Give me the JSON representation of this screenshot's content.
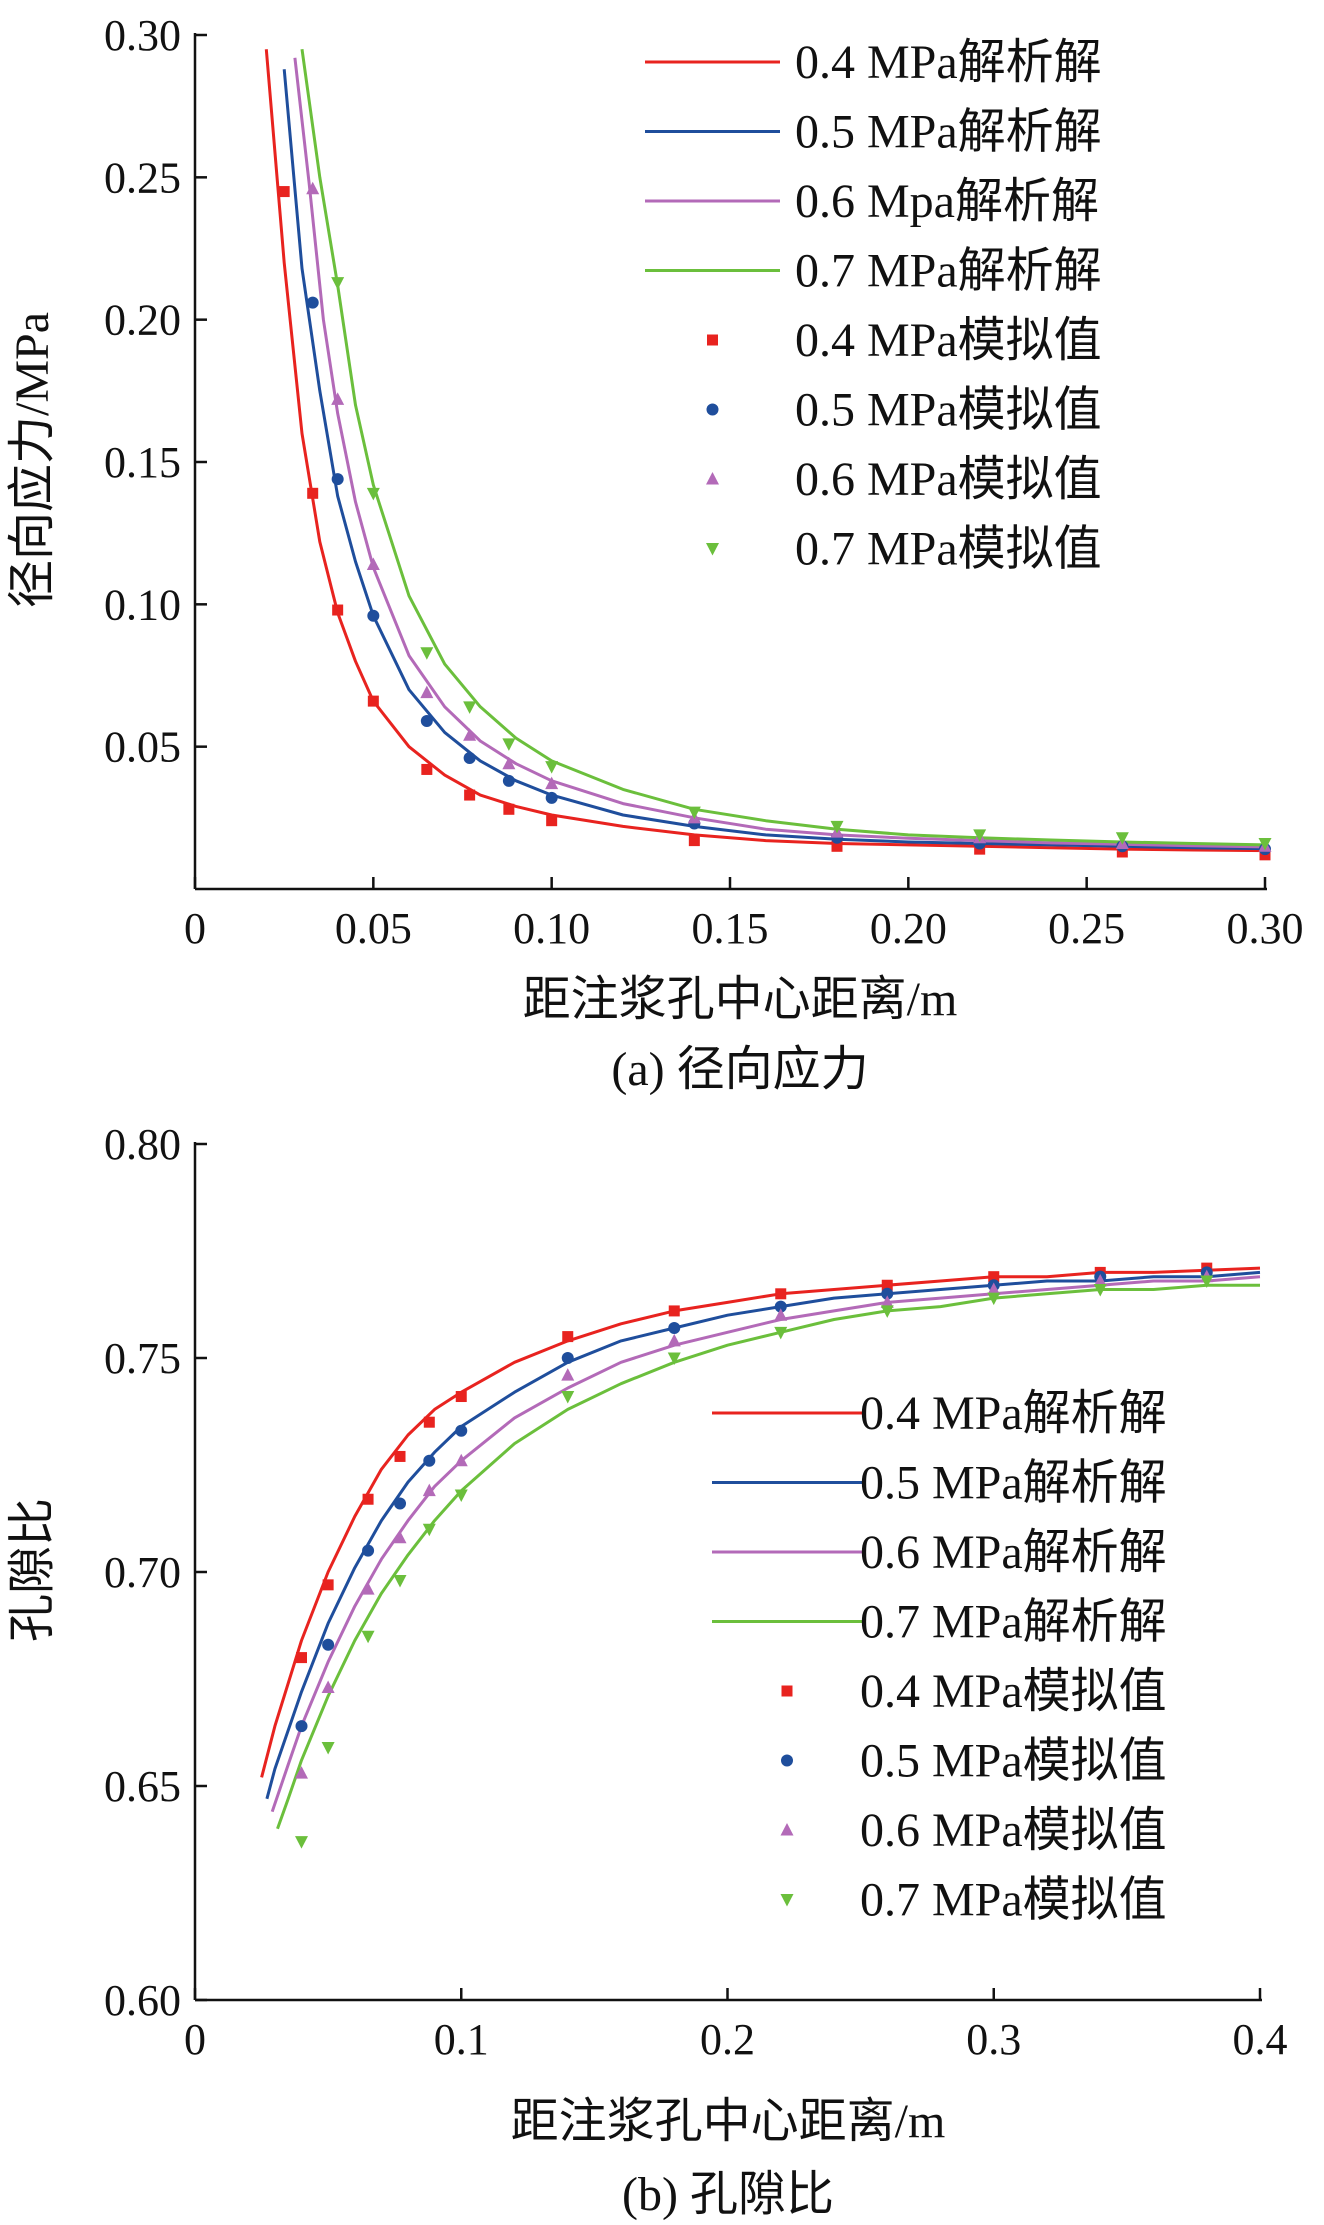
{
  "chart_data": [
    {
      "type": "line",
      "caption": "(a) 径向应力",
      "xlabel": "距注浆孔中心距离/m",
      "ylabel": "径向应力/MPa",
      "xlim": [
        0,
        0.3
      ],
      "ylim": [
        0,
        0.3
      ],
      "x_ticks": [
        "0",
        "0.05",
        "0.10",
        "0.15",
        "0.20",
        "0.25",
        "0.30"
      ],
      "x_tick_values": [
        0,
        0.05,
        0.1,
        0.15,
        0.2,
        0.25,
        0.3
      ],
      "y_ticks": [
        "0.05",
        "0.10",
        "0.15",
        "0.20",
        "0.25",
        "0.30"
      ],
      "y_tick_values": [
        0.05,
        0.1,
        0.15,
        0.2,
        0.25,
        0.3
      ],
      "legend_position": "top-right",
      "series": [
        {
          "name": "0.4 MPa解析解",
          "kind": "line",
          "color": "#e8231f",
          "x": [
            0.02,
            0.025,
            0.03,
            0.035,
            0.04,
            0.045,
            0.05,
            0.06,
            0.07,
            0.08,
            0.09,
            0.1,
            0.12,
            0.14,
            0.16,
            0.18,
            0.2,
            0.22,
            0.24,
            0.26,
            0.28,
            0.3
          ],
          "y": [
            0.295,
            0.22,
            0.16,
            0.122,
            0.097,
            0.08,
            0.066,
            0.05,
            0.04,
            0.033,
            0.029,
            0.026,
            0.022,
            0.019,
            0.017,
            0.016,
            0.0155,
            0.015,
            0.0145,
            0.014,
            0.0137,
            0.0135
          ]
        },
        {
          "name": "0.5 MPa解析解",
          "kind": "line",
          "color": "#1f4e9c",
          "x": [
            0.025,
            0.03,
            0.035,
            0.04,
            0.045,
            0.05,
            0.06,
            0.07,
            0.08,
            0.09,
            0.1,
            0.12,
            0.14,
            0.16,
            0.18,
            0.2,
            0.22,
            0.24,
            0.26,
            0.28,
            0.3
          ],
          "y": [
            0.288,
            0.218,
            0.175,
            0.138,
            0.115,
            0.096,
            0.07,
            0.055,
            0.045,
            0.038,
            0.033,
            0.026,
            0.022,
            0.019,
            0.0175,
            0.0165,
            0.016,
            0.0155,
            0.015,
            0.0145,
            0.0142
          ]
        },
        {
          "name": "0.6 Mpa解析解",
          "kind": "line",
          "color": "#b36ab8",
          "x": [
            0.028,
            0.032,
            0.036,
            0.04,
            0.045,
            0.05,
            0.06,
            0.07,
            0.08,
            0.09,
            0.1,
            0.12,
            0.14,
            0.16,
            0.18,
            0.2,
            0.22,
            0.24,
            0.26,
            0.28,
            0.3
          ],
          "y": [
            0.292,
            0.248,
            0.2,
            0.167,
            0.136,
            0.113,
            0.082,
            0.064,
            0.052,
            0.044,
            0.038,
            0.03,
            0.025,
            0.021,
            0.019,
            0.0178,
            0.017,
            0.0162,
            0.0157,
            0.0152,
            0.0148
          ]
        },
        {
          "name": "0.7 MPa解析解",
          "kind": "line",
          "color": "#6bbf3c",
          "x": [
            0.03,
            0.035,
            0.04,
            0.045,
            0.05,
            0.06,
            0.07,
            0.08,
            0.09,
            0.1,
            0.12,
            0.14,
            0.16,
            0.18,
            0.2,
            0.22,
            0.24,
            0.26,
            0.28,
            0.3
          ],
          "y": [
            0.295,
            0.25,
            0.212,
            0.17,
            0.142,
            0.103,
            0.079,
            0.064,
            0.053,
            0.045,
            0.035,
            0.028,
            0.024,
            0.021,
            0.019,
            0.018,
            0.0172,
            0.0165,
            0.016,
            0.0155
          ]
        },
        {
          "name": "0.4 MPa模拟值",
          "kind": "scatter",
          "marker": "square",
          "color": "#e8231f",
          "x": [
            0.025,
            0.033,
            0.04,
            0.05,
            0.065,
            0.077,
            0.088,
            0.1,
            0.14,
            0.18,
            0.22,
            0.26,
            0.3
          ],
          "y": [
            0.245,
            0.139,
            0.098,
            0.066,
            0.042,
            0.033,
            0.028,
            0.024,
            0.017,
            0.015,
            0.014,
            0.013,
            0.012
          ]
        },
        {
          "name": "0.5 MPa模拟值",
          "kind": "scatter",
          "marker": "circle",
          "color": "#1f4e9c",
          "x": [
            0.033,
            0.04,
            0.05,
            0.065,
            0.077,
            0.088,
            0.1,
            0.14,
            0.18,
            0.22,
            0.26,
            0.3
          ],
          "y": [
            0.206,
            0.144,
            0.096,
            0.059,
            0.046,
            0.038,
            0.032,
            0.023,
            0.018,
            0.016,
            0.015,
            0.014
          ]
        },
        {
          "name": "0.6 MPa模拟值",
          "kind": "scatter",
          "marker": "triangle-up",
          "color": "#b36ab8",
          "x": [
            0.033,
            0.04,
            0.05,
            0.065,
            0.077,
            0.088,
            0.1,
            0.14,
            0.18,
            0.22,
            0.26,
            0.3
          ],
          "y": [
            0.246,
            0.172,
            0.114,
            0.069,
            0.054,
            0.044,
            0.037,
            0.025,
            0.02,
            0.018,
            0.016,
            0.015
          ]
        },
        {
          "name": "0.7 MPa模拟值",
          "kind": "scatter",
          "marker": "triangle-down",
          "color": "#6bbf3c",
          "x": [
            0.04,
            0.05,
            0.065,
            0.077,
            0.088,
            0.1,
            0.14,
            0.18,
            0.22,
            0.26,
            0.3
          ],
          "y": [
            0.213,
            0.139,
            0.083,
            0.064,
            0.051,
            0.043,
            0.027,
            0.022,
            0.019,
            0.018,
            0.016
          ]
        }
      ]
    },
    {
      "type": "line",
      "caption": "(b) 孔隙比",
      "xlabel": "距注浆孔中心距离/m",
      "ylabel": "孔隙比",
      "xlim": [
        0,
        0.4
      ],
      "ylim": [
        0.6,
        0.8
      ],
      "x_ticks": [
        "0",
        "0.1",
        "0.2",
        "0.3",
        "0.4"
      ],
      "x_tick_values": [
        0,
        0.1,
        0.2,
        0.3,
        0.4
      ],
      "y_ticks": [
        "0.60",
        "0.65",
        "0.70",
        "0.75",
        "0.80"
      ],
      "y_tick_values": [
        0.6,
        0.65,
        0.7,
        0.75,
        0.8
      ],
      "legend_position": "center-right",
      "series": [
        {
          "name": "0.4 MPa解析解",
          "kind": "line",
          "color": "#e8231f",
          "x": [
            0.025,
            0.03,
            0.04,
            0.05,
            0.06,
            0.07,
            0.08,
            0.09,
            0.1,
            0.12,
            0.14,
            0.16,
            0.18,
            0.2,
            0.22,
            0.24,
            0.26,
            0.28,
            0.3,
            0.32,
            0.34,
            0.36,
            0.38,
            0.4
          ],
          "y": [
            0.652,
            0.664,
            0.684,
            0.7,
            0.713,
            0.724,
            0.732,
            0.738,
            0.742,
            0.749,
            0.754,
            0.758,
            0.761,
            0.763,
            0.765,
            0.766,
            0.767,
            0.768,
            0.769,
            0.769,
            0.77,
            0.77,
            0.7705,
            0.771
          ]
        },
        {
          "name": "0.5 MPa解析解",
          "kind": "line",
          "color": "#1f4e9c",
          "x": [
            0.027,
            0.03,
            0.04,
            0.05,
            0.06,
            0.07,
            0.08,
            0.09,
            0.1,
            0.12,
            0.14,
            0.16,
            0.18,
            0.2,
            0.22,
            0.24,
            0.26,
            0.28,
            0.3,
            0.32,
            0.34,
            0.36,
            0.38,
            0.4
          ],
          "y": [
            0.647,
            0.654,
            0.672,
            0.688,
            0.701,
            0.712,
            0.721,
            0.728,
            0.734,
            0.742,
            0.749,
            0.754,
            0.757,
            0.76,
            0.762,
            0.764,
            0.765,
            0.766,
            0.767,
            0.768,
            0.768,
            0.769,
            0.769,
            0.77
          ]
        },
        {
          "name": "0.6 MPa解析解",
          "kind": "line",
          "color": "#b36ab8",
          "x": [
            0.029,
            0.035,
            0.04,
            0.05,
            0.06,
            0.07,
            0.08,
            0.09,
            0.1,
            0.12,
            0.14,
            0.16,
            0.18,
            0.2,
            0.22,
            0.24,
            0.26,
            0.28,
            0.3,
            0.32,
            0.34,
            0.36,
            0.38,
            0.4
          ],
          "y": [
            0.644,
            0.655,
            0.664,
            0.679,
            0.692,
            0.703,
            0.712,
            0.72,
            0.726,
            0.736,
            0.743,
            0.749,
            0.753,
            0.756,
            0.759,
            0.761,
            0.763,
            0.764,
            0.765,
            0.766,
            0.767,
            0.768,
            0.768,
            0.769
          ]
        },
        {
          "name": "0.7 MPa解析解",
          "kind": "line",
          "color": "#6bbf3c",
          "x": [
            0.031,
            0.035,
            0.04,
            0.05,
            0.06,
            0.07,
            0.08,
            0.09,
            0.1,
            0.12,
            0.14,
            0.16,
            0.18,
            0.2,
            0.22,
            0.24,
            0.26,
            0.28,
            0.3,
            0.32,
            0.34,
            0.36,
            0.38,
            0.4
          ],
          "y": [
            0.64,
            0.647,
            0.656,
            0.671,
            0.684,
            0.695,
            0.704,
            0.712,
            0.719,
            0.73,
            0.738,
            0.744,
            0.749,
            0.753,
            0.756,
            0.759,
            0.761,
            0.762,
            0.764,
            0.765,
            0.766,
            0.766,
            0.767,
            0.767
          ]
        },
        {
          "name": "0.4 MPa模拟值",
          "kind": "scatter",
          "marker": "square",
          "color": "#e8231f",
          "x": [
            0.04,
            0.05,
            0.065,
            0.077,
            0.088,
            0.1,
            0.14,
            0.18,
            0.22,
            0.26,
            0.3,
            0.34,
            0.38
          ],
          "y": [
            0.68,
            0.697,
            0.717,
            0.727,
            0.735,
            0.741,
            0.755,
            0.761,
            0.765,
            0.767,
            0.769,
            0.77,
            0.771
          ]
        },
        {
          "name": "0.5 MPa模拟值",
          "kind": "scatter",
          "marker": "circle",
          "color": "#1f4e9c",
          "x": [
            0.04,
            0.05,
            0.065,
            0.077,
            0.088,
            0.1,
            0.14,
            0.18,
            0.22,
            0.26,
            0.3,
            0.34,
            0.38
          ],
          "y": [
            0.664,
            0.683,
            0.705,
            0.716,
            0.726,
            0.733,
            0.75,
            0.757,
            0.762,
            0.765,
            0.767,
            0.769,
            0.77
          ]
        },
        {
          "name": "0.6 MPa模拟值",
          "kind": "scatter",
          "marker": "triangle-up",
          "color": "#b36ab8",
          "x": [
            0.04,
            0.05,
            0.065,
            0.077,
            0.088,
            0.1,
            0.14,
            0.18,
            0.22,
            0.26,
            0.3,
            0.34,
            0.38
          ],
          "y": [
            0.653,
            0.673,
            0.696,
            0.708,
            0.719,
            0.726,
            0.746,
            0.754,
            0.76,
            0.763,
            0.766,
            0.768,
            0.769
          ]
        },
        {
          "name": "0.7 MPa模拟值",
          "kind": "scatter",
          "marker": "triangle-down",
          "color": "#6bbf3c",
          "x": [
            0.04,
            0.05,
            0.065,
            0.077,
            0.088,
            0.1,
            0.14,
            0.18,
            0.22,
            0.26,
            0.3,
            0.34,
            0.38
          ],
          "y": [
            0.637,
            0.659,
            0.685,
            0.698,
            0.71,
            0.718,
            0.741,
            0.75,
            0.756,
            0.761,
            0.764,
            0.766,
            0.768
          ]
        }
      ]
    }
  ]
}
